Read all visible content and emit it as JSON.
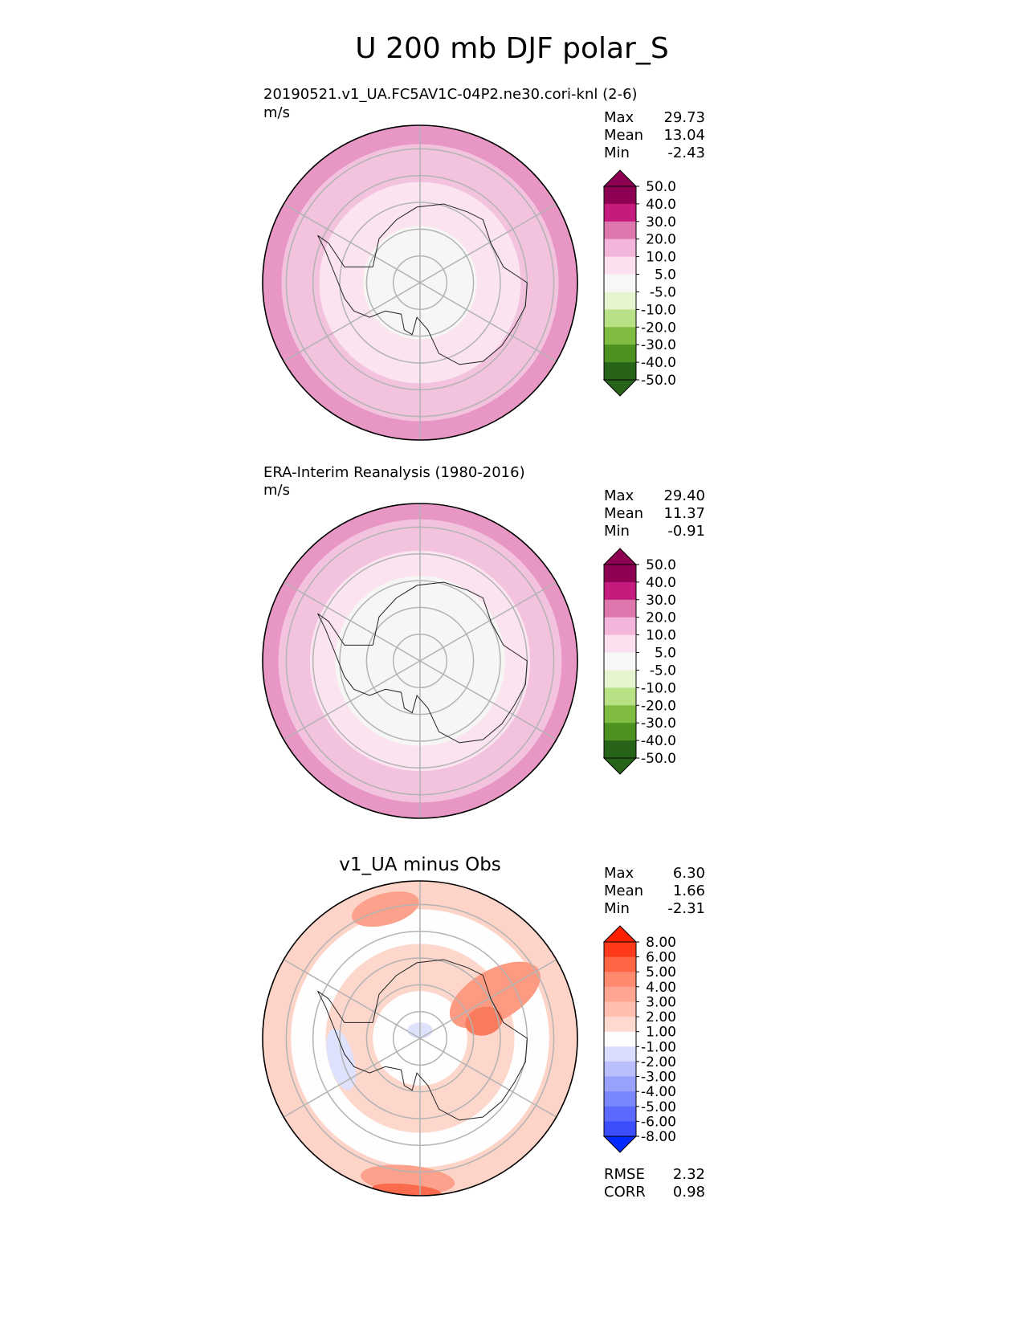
{
  "title": "U 200 mb DJF polar_S",
  "panels": [
    {
      "title": "20190521.v1_UA.FC5AV1C-04P2.ne30.cori-knl (2-6)",
      "units": "m/s",
      "stats": [
        {
          "label": "Max",
          "value": "29.73"
        },
        {
          "label": "Mean",
          "value": "13.04"
        },
        {
          "label": "Min",
          "value": "-2.43"
        }
      ]
    },
    {
      "title": "ERA-Interim Reanalysis (1980-2016)",
      "units": "m/s",
      "stats": [
        {
          "label": "Max",
          "value": "29.40"
        },
        {
          "label": "Mean",
          "value": "11.37"
        },
        {
          "label": "Min",
          "value": "-0.91"
        }
      ]
    },
    {
      "title": "v1_UA minus Obs",
      "stats": [
        {
          "label": "Max",
          "value": "6.30"
        },
        {
          "label": "Mean",
          "value": "1.66"
        },
        {
          "label": "Min",
          "value": "-2.31"
        }
      ],
      "metrics": [
        {
          "label": "RMSE",
          "value": "2.32"
        },
        {
          "label": "CORR",
          "value": "0.98"
        }
      ]
    }
  ],
  "chart_data": [
    {
      "type": "heatmap",
      "projection": "south-polar-stereographic",
      "colorbar": {
        "ticks": [
          "50.0",
          "40.0",
          "30.0",
          "20.0",
          "10.0",
          "5.0",
          "-5.0",
          "-10.0",
          "-20.0",
          "-30.0",
          "-40.0",
          "-50.0"
        ],
        "colors": [
          "#8e0152",
          "#c51b7d",
          "#de77ae",
          "#f1b6da",
          "#fde0ef",
          "#f7f7f7",
          "#e6f5d0",
          "#b8e186",
          "#7fbc41",
          "#4d9221",
          "#276419"
        ],
        "extend": "both",
        "extend_colors": [
          "#8e0152",
          "#276419"
        ]
      },
      "field_rings": [
        {
          "radius": 1.0,
          "color": "#e896c4"
        },
        {
          "radius": 0.88,
          "color": "#f3c2de"
        },
        {
          "radius": 0.64,
          "color": "#fbe4ef"
        },
        {
          "radius": 0.36,
          "color": "#f6f6f4"
        }
      ]
    },
    {
      "type": "heatmap",
      "projection": "south-polar-stereographic",
      "colorbar": {
        "ticks": [
          "50.0",
          "40.0",
          "30.0",
          "20.0",
          "10.0",
          "5.0",
          "-5.0",
          "-10.0",
          "-20.0",
          "-30.0",
          "-40.0",
          "-50.0"
        ],
        "colors": [
          "#8e0152",
          "#c51b7d",
          "#de77ae",
          "#f1b6da",
          "#fde0ef",
          "#f7f7f7",
          "#e6f5d0",
          "#b8e186",
          "#7fbc41",
          "#4d9221",
          "#276419"
        ],
        "extend": "both",
        "extend_colors": [
          "#8e0152",
          "#276419"
        ]
      },
      "field_rings": [
        {
          "radius": 1.0,
          "color": "#e896c4"
        },
        {
          "radius": 0.9,
          "color": "#f3c2de"
        },
        {
          "radius": 0.7,
          "color": "#fbe4ef"
        },
        {
          "radius": 0.54,
          "color": "#f6f6f4"
        }
      ]
    },
    {
      "type": "heatmap",
      "projection": "south-polar-stereographic",
      "colorbar": {
        "ticks": [
          "8.00",
          "6.00",
          "5.00",
          "4.00",
          "3.00",
          "2.00",
          "1.00",
          "-1.00",
          "-2.00",
          "-3.00",
          "-4.00",
          "-5.00",
          "-6.00",
          "-8.00"
        ],
        "colors": [
          "#ff3a1a",
          "#ff6445",
          "#ff8a70",
          "#ffa591",
          "#ffbfae",
          "#fed9cf",
          "#fefefe",
          "#d9dcfe",
          "#b9bffd",
          "#98a2fc",
          "#7a86fc",
          "#5b6afc",
          "#3c4dfc"
        ],
        "extend": "both",
        "extend_colors": [
          "#ff2000",
          "#0029ff"
        ]
      },
      "field_rings": [
        {
          "radius": 1.0,
          "color": "#fed3c8"
        },
        {
          "radius": 0.82,
          "color": "#fefefe"
        },
        {
          "radius": 0.6,
          "color": "#fdd7cc"
        },
        {
          "radius": 0.3,
          "color": "#fefefe"
        }
      ],
      "field_patches": [
        {
          "angle": 105,
          "dist": 0.85,
          "rx": 0.22,
          "ry": 0.1,
          "color": "#fca28c"
        },
        {
          "angle": 30,
          "dist": 0.55,
          "rx": 0.16,
          "ry": 0.32,
          "color": "#fc9a82"
        },
        {
          "angle": 15,
          "dist": 0.42,
          "rx": 0.09,
          "ry": 0.12,
          "color": "#f97b5e"
        },
        {
          "angle": 265,
          "dist": 0.9,
          "rx": 0.3,
          "ry": 0.09,
          "color": "#fca28c"
        },
        {
          "angle": 265,
          "dist": 0.97,
          "rx": 0.22,
          "ry": 0.04,
          "color": "#f96b4c"
        },
        {
          "angle": 195,
          "dist": 0.52,
          "rx": 0.2,
          "ry": 0.08,
          "color": "#dfe2fc"
        },
        {
          "angle": 90,
          "dist": 0.05,
          "rx": 0.08,
          "ry": 0.05,
          "color": "#dfe2fc"
        }
      ]
    }
  ]
}
